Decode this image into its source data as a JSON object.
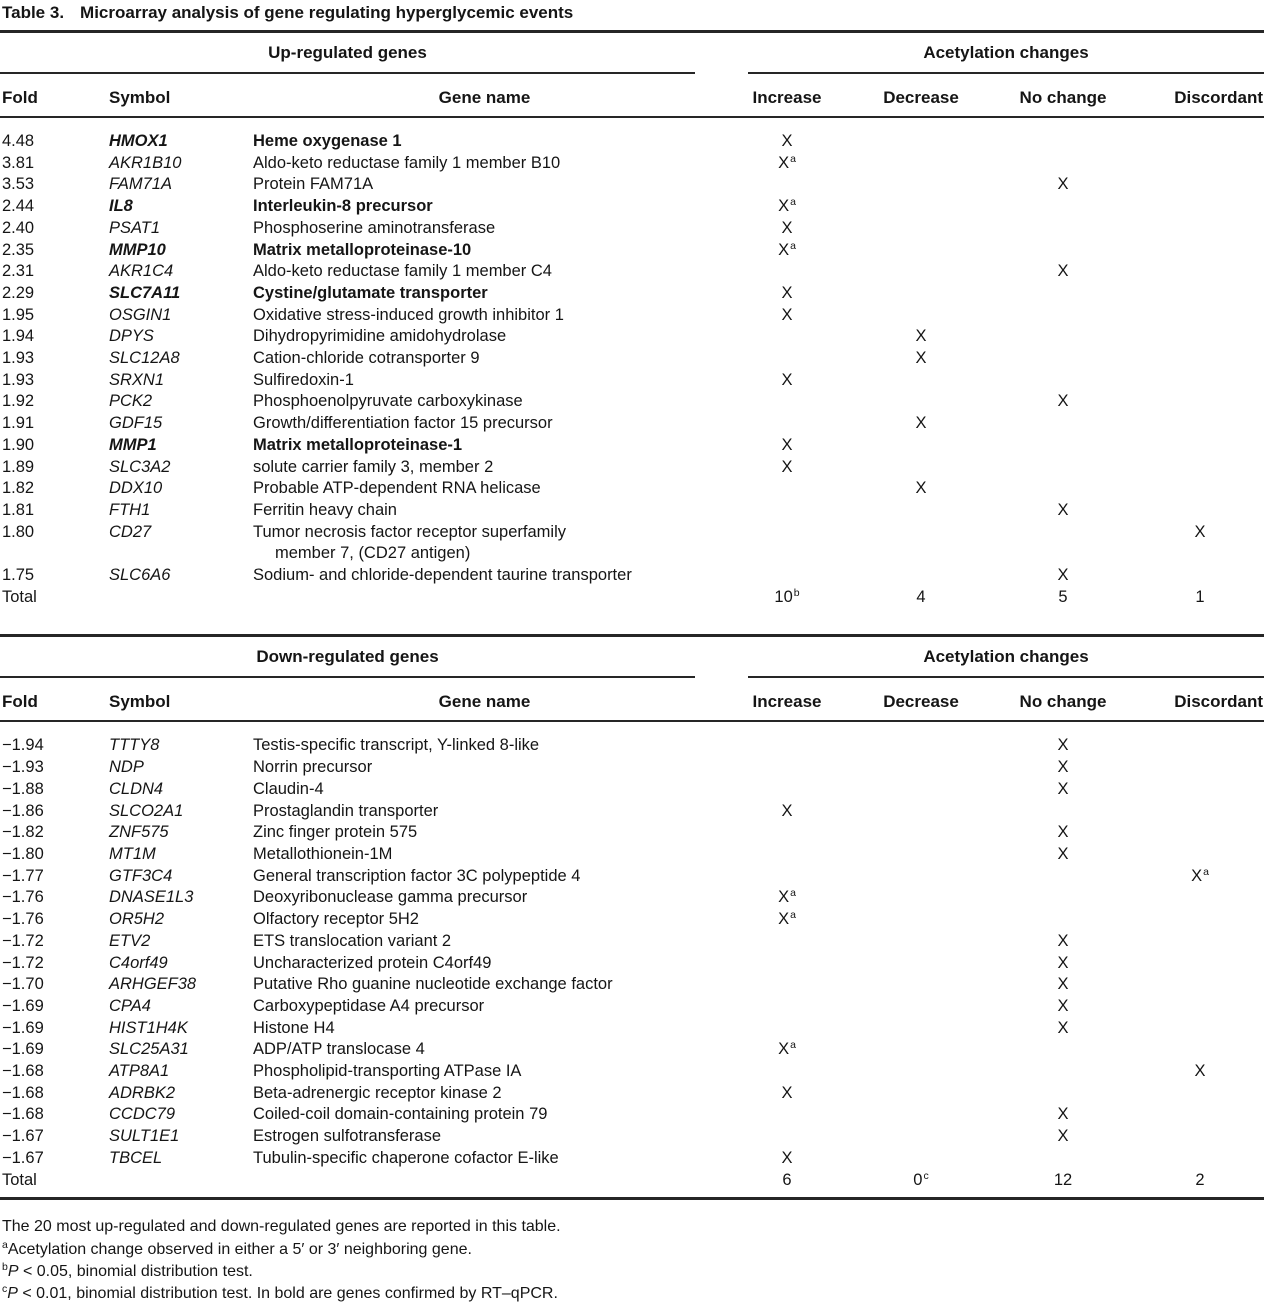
{
  "title": {
    "label": "Table 3.",
    "text": "Microarray analysis of gene regulating hyperglycemic events"
  },
  "sections": [
    {
      "group_header": "Up-regulated genes",
      "acetylation_header": "Acetylation changes",
      "columns": {
        "fold": "Fold",
        "symbol": "Symbol",
        "gene_name": "Gene name",
        "increase": "Increase",
        "decrease": "Decrease",
        "no_change": "No change",
        "discordant": "Discordant"
      },
      "rows": [
        {
          "fold": "4.48",
          "symbol": "HMOX1",
          "bold": true,
          "gene_name": "Heme oxygenase 1",
          "mark_col": "increase",
          "mark": "X",
          "mark_sup": ""
        },
        {
          "fold": "3.81",
          "symbol": "AKR1B10",
          "bold": false,
          "gene_name": "Aldo-keto reductase family 1 member B10",
          "mark_col": "increase",
          "mark": "X",
          "mark_sup": "a"
        },
        {
          "fold": "3.53",
          "symbol": "FAM71A",
          "bold": false,
          "gene_name": "Protein FAM71A",
          "mark_col": "no_change",
          "mark": "X",
          "mark_sup": ""
        },
        {
          "fold": "2.44",
          "symbol": "IL8",
          "bold": true,
          "gene_name": "Interleukin-8 precursor",
          "mark_col": "increase",
          "mark": "X",
          "mark_sup": "a"
        },
        {
          "fold": "2.40",
          "symbol": "PSAT1",
          "bold": false,
          "gene_name": "Phosphoserine aminotransferase",
          "mark_col": "increase",
          "mark": "X",
          "mark_sup": ""
        },
        {
          "fold": "2.35",
          "symbol": "MMP10",
          "bold": true,
          "gene_name": "Matrix metalloproteinase-10",
          "mark_col": "increase",
          "mark": "X",
          "mark_sup": "a"
        },
        {
          "fold": "2.31",
          "symbol": "AKR1C4",
          "bold": false,
          "gene_name": "Aldo-keto reductase family 1 member C4",
          "mark_col": "no_change",
          "mark": "X",
          "mark_sup": ""
        },
        {
          "fold": "2.29",
          "symbol": "SLC7A11",
          "bold": true,
          "gene_name": "Cystine/glutamate transporter",
          "mark_col": "increase",
          "mark": "X",
          "mark_sup": ""
        },
        {
          "fold": "1.95",
          "symbol": "OSGIN1",
          "bold": false,
          "gene_name": "Oxidative stress-induced growth inhibitor 1",
          "mark_col": "increase",
          "mark": "X",
          "mark_sup": ""
        },
        {
          "fold": "1.94",
          "symbol": "DPYS",
          "bold": false,
          "gene_name": "Dihydropyrimidine amidohydrolase",
          "mark_col": "decrease",
          "mark": "X",
          "mark_sup": ""
        },
        {
          "fold": "1.93",
          "symbol": "SLC12A8",
          "bold": false,
          "gene_name": "Cation-chloride cotransporter 9",
          "mark_col": "decrease",
          "mark": "X",
          "mark_sup": ""
        },
        {
          "fold": "1.93",
          "symbol": "SRXN1",
          "bold": false,
          "gene_name": "Sulfiredoxin-1",
          "mark_col": "increase",
          "mark": "X",
          "mark_sup": ""
        },
        {
          "fold": "1.92",
          "symbol": "PCK2",
          "bold": false,
          "gene_name": "Phosphoenolpyruvate carboxykinase",
          "mark_col": "no_change",
          "mark": "X",
          "mark_sup": ""
        },
        {
          "fold": "1.91",
          "symbol": "GDF15",
          "bold": false,
          "gene_name": "Growth/differentiation factor 15 precursor",
          "mark_col": "decrease",
          "mark": "X",
          "mark_sup": ""
        },
        {
          "fold": "1.90",
          "symbol": "MMP1",
          "bold": true,
          "gene_name": "Matrix metalloproteinase-1",
          "mark_col": "increase",
          "mark": "X",
          "mark_sup": ""
        },
        {
          "fold": "1.89",
          "symbol": "SLC3A2",
          "bold": false,
          "gene_name": "solute carrier family 3, member 2",
          "mark_col": "increase",
          "mark": "X",
          "mark_sup": ""
        },
        {
          "fold": "1.82",
          "symbol": "DDX10",
          "bold": false,
          "gene_name": "Probable ATP-dependent RNA helicase",
          "mark_col": "decrease",
          "mark": "X",
          "mark_sup": ""
        },
        {
          "fold": "1.81",
          "symbol": "FTH1",
          "bold": false,
          "gene_name": "Ferritin heavy chain",
          "mark_col": "no_change",
          "mark": "X",
          "mark_sup": ""
        },
        {
          "fold": "1.80",
          "symbol": "CD27",
          "bold": false,
          "gene_name": "Tumor necrosis factor receptor superfamily",
          "gene_name2": "member 7, (CD27 antigen)",
          "mark_col": "discordant",
          "mark": "X",
          "mark_sup": ""
        },
        {
          "fold": "1.75",
          "symbol": "SLC6A6",
          "bold": false,
          "gene_name": "Sodium- and chloride-dependent taurine transporter",
          "mark_col": "no_change",
          "mark": "X",
          "mark_sup": ""
        }
      ],
      "total": {
        "label": "Total",
        "increase": "10",
        "increase_sup": "b",
        "decrease": "4",
        "decrease_sup": "",
        "no_change": "5",
        "no_change_sup": "",
        "discordant": "1",
        "discordant_sup": ""
      }
    },
    {
      "group_header": "Down-regulated genes",
      "acetylation_header": "Acetylation changes",
      "columns": {
        "fold": "Fold",
        "symbol": "Symbol",
        "gene_name": "Gene name",
        "increase": "Increase",
        "decrease": "Decrease",
        "no_change": "No change",
        "discordant": "Discordant"
      },
      "rows": [
        {
          "fold": "−1.94",
          "symbol": "TTTY8",
          "bold": false,
          "gene_name": "Testis-specific transcript, Y-linked 8-like",
          "mark_col": "no_change",
          "mark": "X",
          "mark_sup": ""
        },
        {
          "fold": "−1.93",
          "symbol": "NDP",
          "bold": false,
          "gene_name": "Norrin precursor",
          "mark_col": "no_change",
          "mark": "X",
          "mark_sup": ""
        },
        {
          "fold": "−1.88",
          "symbol": "CLDN4",
          "bold": false,
          "gene_name": "Claudin-4",
          "mark_col": "no_change",
          "mark": "X",
          "mark_sup": ""
        },
        {
          "fold": "−1.86",
          "symbol": "SLCO2A1",
          "bold": false,
          "gene_name": "Prostaglandin transporter",
          "mark_col": "increase",
          "mark": "X",
          "mark_sup": ""
        },
        {
          "fold": "−1.82",
          "symbol": "ZNF575",
          "bold": false,
          "gene_name": "Zinc finger protein 575",
          "mark_col": "no_change",
          "mark": "X",
          "mark_sup": ""
        },
        {
          "fold": "−1.80",
          "symbol": "MT1M",
          "bold": false,
          "gene_name": "Metallothionein-1M",
          "mark_col": "no_change",
          "mark": "X",
          "mark_sup": ""
        },
        {
          "fold": "−1.77",
          "symbol": "GTF3C4",
          "bold": false,
          "gene_name": "General transcription factor 3C polypeptide 4",
          "mark_col": "discordant",
          "mark": "X",
          "mark_sup": "a"
        },
        {
          "fold": "−1.76",
          "symbol": "DNASE1L3",
          "bold": false,
          "gene_name": "Deoxyribonuclease gamma precursor",
          "mark_col": "increase",
          "mark": "X",
          "mark_sup": "a"
        },
        {
          "fold": "−1.76",
          "symbol": "OR5H2",
          "bold": false,
          "gene_name": "Olfactory receptor 5H2",
          "mark_col": "increase",
          "mark": "X",
          "mark_sup": "a"
        },
        {
          "fold": "−1.72",
          "symbol": "ETV2",
          "bold": false,
          "gene_name": "ETS translocation variant 2",
          "mark_col": "no_change",
          "mark": "X",
          "mark_sup": ""
        },
        {
          "fold": "−1.72",
          "symbol": "C4orf49",
          "bold": false,
          "gene_name": "Uncharacterized protein C4orf49",
          "mark_col": "no_change",
          "mark": "X",
          "mark_sup": ""
        },
        {
          "fold": "−1.70",
          "symbol": "ARHGEF38",
          "bold": false,
          "gene_name": "Putative Rho guanine nucleotide exchange factor",
          "mark_col": "no_change",
          "mark": "X",
          "mark_sup": ""
        },
        {
          "fold": "−1.69",
          "symbol": "CPA4",
          "bold": false,
          "gene_name": "Carboxypeptidase A4 precursor",
          "mark_col": "no_change",
          "mark": "X",
          "mark_sup": ""
        },
        {
          "fold": "−1.69",
          "symbol": "HIST1H4K",
          "bold": false,
          "gene_name": "Histone H4",
          "mark_col": "no_change",
          "mark": "X",
          "mark_sup": ""
        },
        {
          "fold": "−1.69",
          "symbol": "SLC25A31",
          "bold": false,
          "gene_name": "ADP/ATP translocase 4",
          "mark_col": "increase",
          "mark": "X",
          "mark_sup": "a"
        },
        {
          "fold": "−1.68",
          "symbol": "ATP8A1",
          "bold": false,
          "gene_name": "Phospholipid-transporting ATPase IA",
          "mark_col": "discordant",
          "mark": "X",
          "mark_sup": ""
        },
        {
          "fold": "−1.68",
          "symbol": "ADRBK2",
          "bold": false,
          "gene_name": "Beta-adrenergic receptor kinase 2",
          "mark_col": "increase",
          "mark": "X",
          "mark_sup": ""
        },
        {
          "fold": "−1.68",
          "symbol": "CCDC79",
          "bold": false,
          "gene_name": "Coiled-coil domain-containing protein 79",
          "mark_col": "no_change",
          "mark": "X",
          "mark_sup": ""
        },
        {
          "fold": "−1.67",
          "symbol": "SULT1E1",
          "bold": false,
          "gene_name": "Estrogen sulfotransferase",
          "mark_col": "no_change",
          "mark": "X",
          "mark_sup": ""
        },
        {
          "fold": "−1.67",
          "symbol": "TBCEL",
          "bold": false,
          "gene_name": "Tubulin-specific chaperone cofactor E-like",
          "mark_col": "increase",
          "mark": "X",
          "mark_sup": ""
        }
      ],
      "total": {
        "label": "Total",
        "increase": "6",
        "increase_sup": "",
        "decrease": "0",
        "decrease_sup": "c",
        "no_change": "12",
        "no_change_sup": "",
        "discordant": "2",
        "discordant_sup": ""
      }
    }
  ],
  "footnotes": [
    {
      "sup": "",
      "italic": "",
      "text": "The 20 most up-regulated and down-regulated genes are reported in this table."
    },
    {
      "sup": "a",
      "italic": "",
      "text": "Acetylation change observed in either a 5′ or 3′ neighboring gene."
    },
    {
      "sup": "b",
      "italic": "P",
      "text": " < 0.05, binomial distribution test."
    },
    {
      "sup": "c",
      "italic": "P",
      "text": " < 0.01, binomial distribution test. In bold are genes confirmed by RT–qPCR."
    }
  ]
}
